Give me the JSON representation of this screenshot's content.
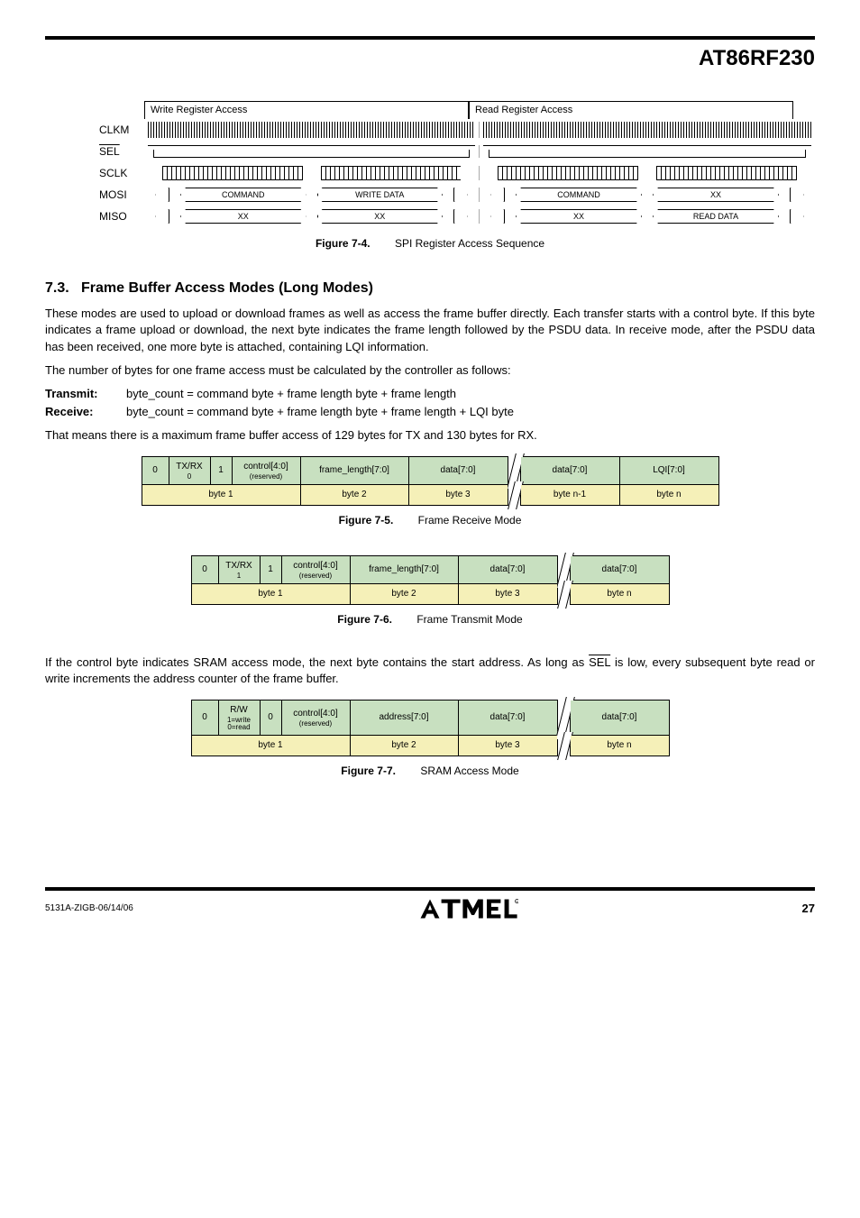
{
  "doc": {
    "title": "AT86RF230",
    "footer_code": "5131A-ZIGB-06/14/06",
    "page_number": "27",
    "logo_alt": "Atmel"
  },
  "timing": {
    "write_label": "Write Register Access",
    "read_label": "Read Register Access",
    "signals": [
      "CLKM",
      "SEL",
      "SCLK",
      "MOSI",
      "MISO"
    ],
    "mosi_write": [
      "COMMAND",
      "WRITE DATA"
    ],
    "mosi_read": [
      "COMMAND",
      "XX"
    ],
    "miso_write": [
      "XX",
      "XX"
    ],
    "miso_read": [
      "XX",
      "READ DATA"
    ]
  },
  "fig74": {
    "num": "Figure 7-4.",
    "title": "SPI Register Access Sequence"
  },
  "section": {
    "num": "7.3.",
    "title": "Frame Buffer Access Modes (Long Modes)"
  },
  "para1": "These modes are used to upload or download frames as well as access the frame buffer directly. Each transfer starts with a control byte. If this byte indicates a frame upload or download, the next byte indicates the frame length followed by the PSDU data. In receive mode, after the PSDU data has been received, one more byte is attached, containing LQI information.",
  "para2": "The number of bytes for one frame access must be calculated by the controller as follows:",
  "transmit_lbl": "Transmit:",
  "transmit_formula": "byte_count = command byte + frame length byte + frame length",
  "receive_lbl": "Receive:",
  "receive_formula": "byte_count = command byte + frame length byte + frame length + LQI byte",
  "para3": "That means there is a maximum frame buffer access of 129 bytes for TX and 130 bytes for RX.",
  "fig75": {
    "num": "Figure 7-5.",
    "title": "Frame Receive Mode",
    "row1": [
      "0",
      "TX/RX\n0",
      "1",
      "control[4:0]\n(reserved)",
      "frame_length[7:0]",
      "data[7:0]",
      "",
      "data[7:0]",
      "LQI[7:0]"
    ],
    "row2": [
      "byte 1",
      "byte 2",
      "byte 3",
      "",
      "byte n-1",
      "byte n"
    ],
    "colspans1": [
      1,
      1,
      1,
      1,
      1,
      1,
      0,
      1,
      1
    ],
    "widths": [
      "30px",
      "46px",
      "24px",
      "76px",
      "120px",
      "110px",
      "14px",
      "110px",
      "110px"
    ]
  },
  "fig76": {
    "num": "Figure 7-6.",
    "title": "Frame Transmit Mode",
    "row1": [
      "0",
      "TX/RX\n1",
      "1",
      "control[4:0]\n(reserved)",
      "frame_length[7:0]",
      "data[7:0]",
      "",
      "data[7:0]"
    ],
    "row2": [
      "byte 1",
      "byte 2",
      "byte 3",
      "",
      "byte n"
    ],
    "widths": [
      "30px",
      "46px",
      "24px",
      "76px",
      "120px",
      "110px",
      "14px",
      "110px"
    ]
  },
  "para4_a": "If the control byte indicates SRAM access mode, the next byte contains the start address. As long as ",
  "para4_sel": "SEL",
  "para4_b": " is low, every subsequent byte read or write increments the address counter of the frame buffer.",
  "fig77": {
    "num": "Figure 7-7.",
    "title": "SRAM Access Mode",
    "row1": [
      "0",
      "R/W\n1=write\n0=read",
      "0",
      "control[4:0]\n(reserved)",
      "address[7:0]",
      "data[7:0]",
      "",
      "data[7:0]"
    ],
    "row2": [
      "byte 1",
      "byte 2",
      "byte 3",
      "",
      "byte n"
    ],
    "widths": [
      "30px",
      "46px",
      "24px",
      "76px",
      "120px",
      "110px",
      "14px",
      "110px"
    ]
  },
  "colors": {
    "header_green": "#c8e0c0",
    "label_yellow": "#f5f0b8"
  }
}
